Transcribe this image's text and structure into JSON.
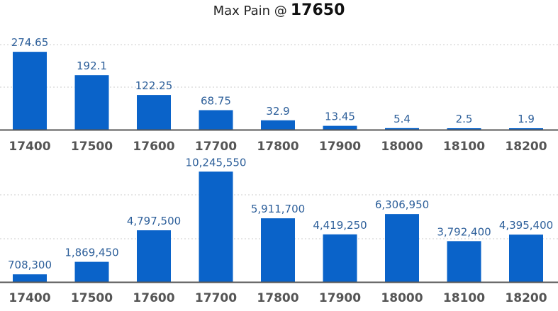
{
  "header": {
    "label": "Max Pain @",
    "value": "17650"
  },
  "colors": {
    "bar": "#0a63c9",
    "axis": "#555555",
    "grid": "#cccccc",
    "label": "#2d5f9a"
  },
  "chart_data": [
    {
      "type": "bar",
      "title": "",
      "xlabel": "",
      "ylabel": "",
      "grid": true,
      "categories": [
        "17400",
        "17500",
        "17600",
        "17700",
        "17800",
        "17900",
        "18000",
        "18100",
        "18200"
      ],
      "values": [
        274.65,
        192.1,
        122.25,
        68.75,
        32.9,
        13.45,
        5.4,
        2.5,
        1.9
      ],
      "labels": [
        "274.65",
        "192.1",
        "122.25",
        "68.75",
        "32.9",
        "13.45",
        "5.4",
        "2.5",
        "1.9"
      ],
      "ylim": [
        0,
        450
      ]
    },
    {
      "type": "bar",
      "title": "",
      "xlabel": "",
      "ylabel": "",
      "grid": true,
      "categories": [
        "17400",
        "17500",
        "17600",
        "17700",
        "17800",
        "17900",
        "18000",
        "18100",
        "18200"
      ],
      "values": [
        708300,
        1869450,
        4797500,
        10245550,
        5911700,
        4419250,
        6306950,
        3792400,
        4395400
      ],
      "labels": [
        "708,300",
        "1,869,450",
        "4,797,500",
        "10,245,550",
        "5,911,700",
        "4,419,250",
        "6,306,950",
        "3,792,400",
        "4,395,400"
      ],
      "ylim": [
        0,
        12500000
      ]
    }
  ]
}
